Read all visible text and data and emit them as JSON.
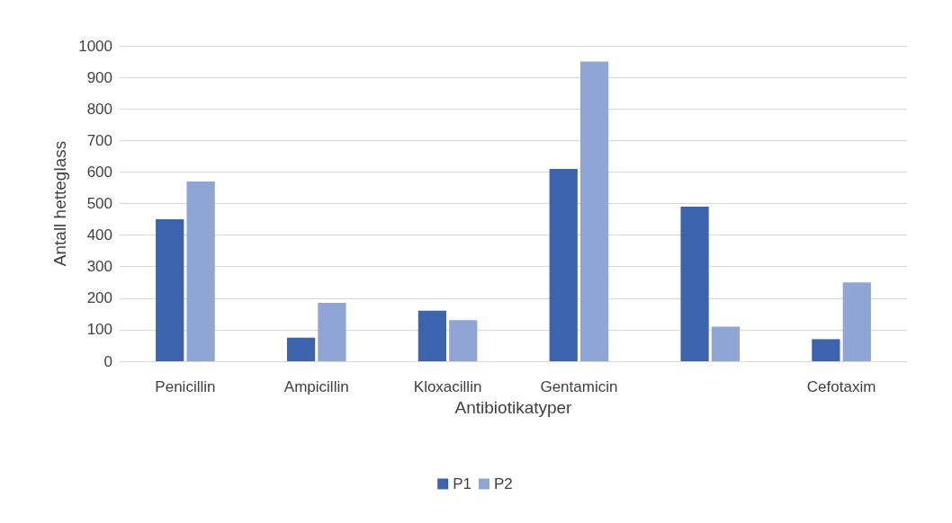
{
  "chart_data": {
    "type": "bar",
    "xlabel": "Antibiotikatyper",
    "ylabel": "Antall hetteglass",
    "categories": [
      "Penicillin",
      "Ampicillin",
      "Kloxacillin",
      "Gentamicin",
      null,
      "Cefotaxim"
    ],
    "series": [
      {
        "name": "P1",
        "color": "#3c64ae",
        "values": [
          450,
          75,
          160,
          610,
          490,
          70
        ]
      },
      {
        "name": "P2",
        "color": "#8fa5d6",
        "values": [
          570,
          185,
          130,
          950,
          110,
          250
        ]
      }
    ],
    "ylim": [
      0,
      1000
    ],
    "yticks": [
      0,
      100,
      200,
      300,
      400,
      500,
      600,
      700,
      800,
      900,
      1000
    ],
    "grid": "y",
    "legend": "bottom"
  }
}
